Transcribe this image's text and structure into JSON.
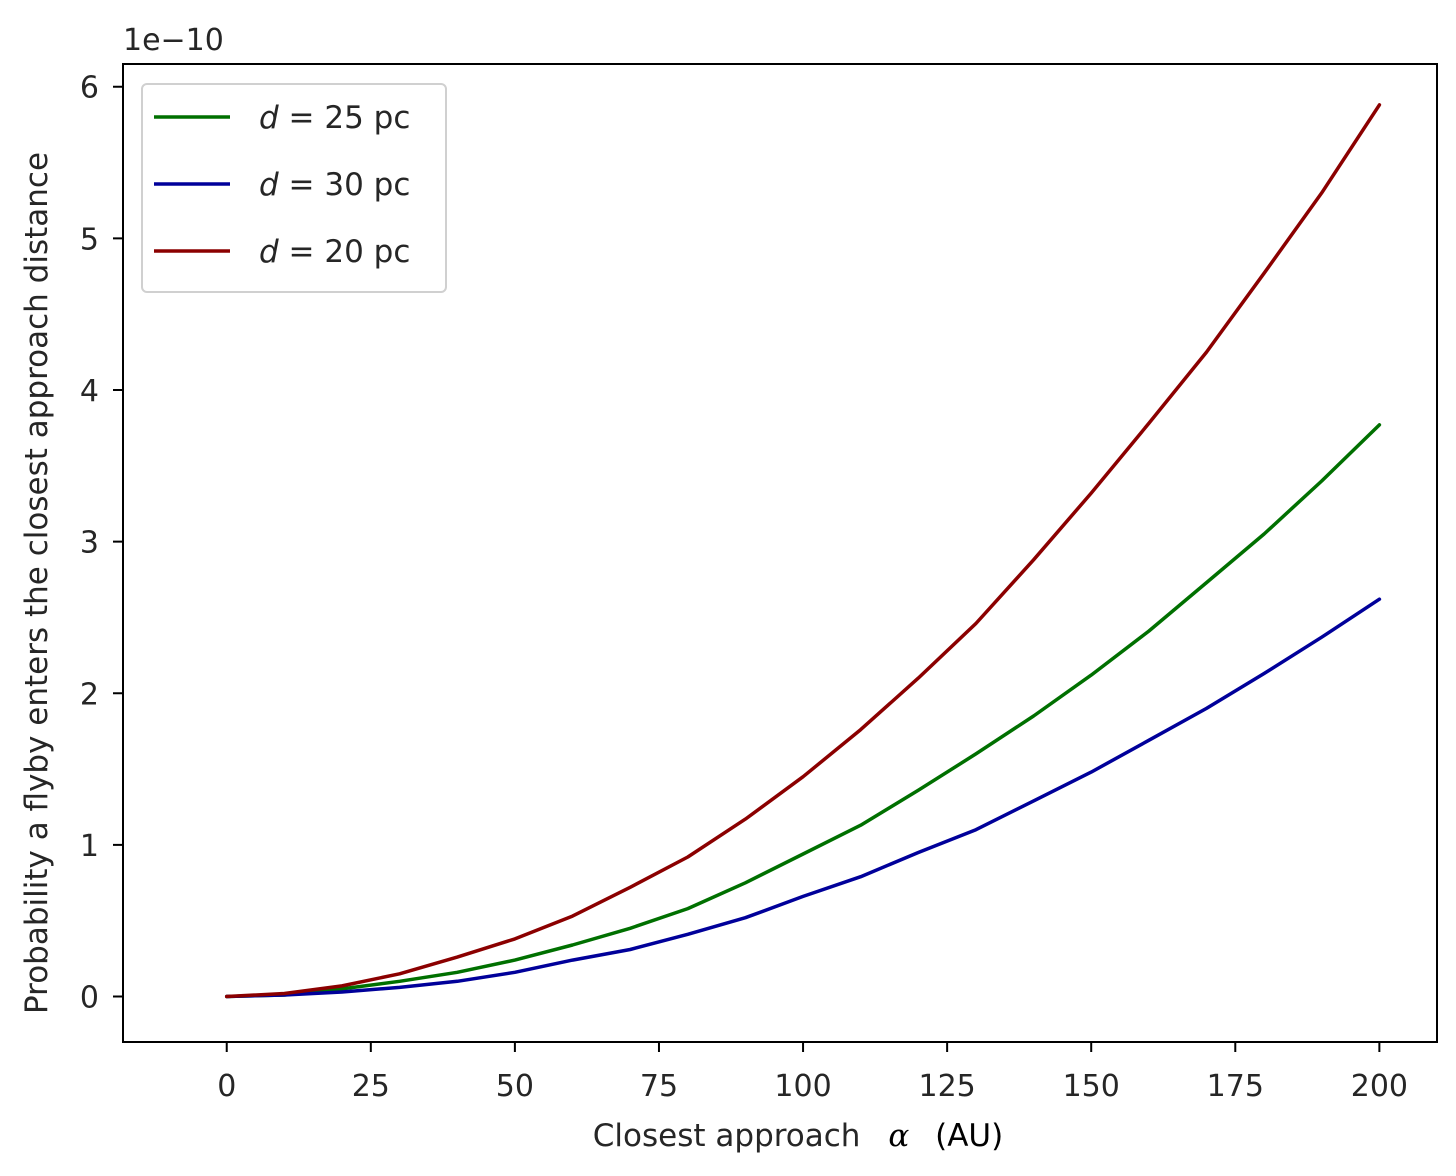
{
  "chart_data": {
    "type": "line",
    "title": "",
    "xlabel": "Closest approach",
    "xlabel_symbol": "α",
    "xlabel_unit": "(AU)",
    "ylabel": "Probability a flyby enters the closest approach distance",
    "y_offset_label": "1e−10",
    "xlim": [
      -18,
      210
    ],
    "ylim": [
      -0.3,
      6.15
    ],
    "x_ticks": [
      0,
      25,
      50,
      75,
      100,
      125,
      150,
      175,
      200
    ],
    "y_ticks": [
      0,
      1,
      2,
      3,
      4,
      5,
      6
    ],
    "x_tick_labels": [
      "0",
      "25",
      "50",
      "75",
      "100",
      "125",
      "150",
      "175",
      "200"
    ],
    "y_tick_labels": [
      "0",
      "1",
      "2",
      "3",
      "4",
      "5",
      "6"
    ],
    "grid": false,
    "legend_position": "top-left",
    "x": [
      0,
      10,
      20,
      30,
      40,
      50,
      60,
      70,
      80,
      90,
      100,
      110,
      120,
      130,
      140,
      150,
      160,
      170,
      180,
      190,
      200
    ],
    "series": [
      {
        "name": "d = 25 pc",
        "legend_italic": "d",
        "legend_rest": " = 25 pc",
        "color": "#007000",
        "values": [
          0.0,
          0.01,
          0.05,
          0.1,
          0.16,
          0.24,
          0.34,
          0.45,
          0.58,
          0.75,
          0.94,
          1.13,
          1.36,
          1.6,
          1.85,
          2.12,
          2.41,
          2.73,
          3.05,
          3.4,
          3.77
        ]
      },
      {
        "name": "d = 30 pc",
        "legend_italic": "d",
        "legend_rest": " = 30 pc",
        "color": "#00009a",
        "values": [
          0.0,
          0.01,
          0.03,
          0.06,
          0.1,
          0.16,
          0.24,
          0.31,
          0.41,
          0.52,
          0.66,
          0.79,
          0.95,
          1.1,
          1.29,
          1.48,
          1.69,
          1.9,
          2.13,
          2.37,
          2.62
        ]
      },
      {
        "name": "d = 20 pc",
        "legend_italic": "d",
        "legend_rest": " = 20 pc",
        "color": "#8b0000",
        "values": [
          0.0,
          0.02,
          0.07,
          0.15,
          0.26,
          0.38,
          0.53,
          0.72,
          0.92,
          1.17,
          1.45,
          1.76,
          2.1,
          2.46,
          2.88,
          3.32,
          3.78,
          4.25,
          4.77,
          5.3,
          5.88
        ]
      }
    ]
  }
}
